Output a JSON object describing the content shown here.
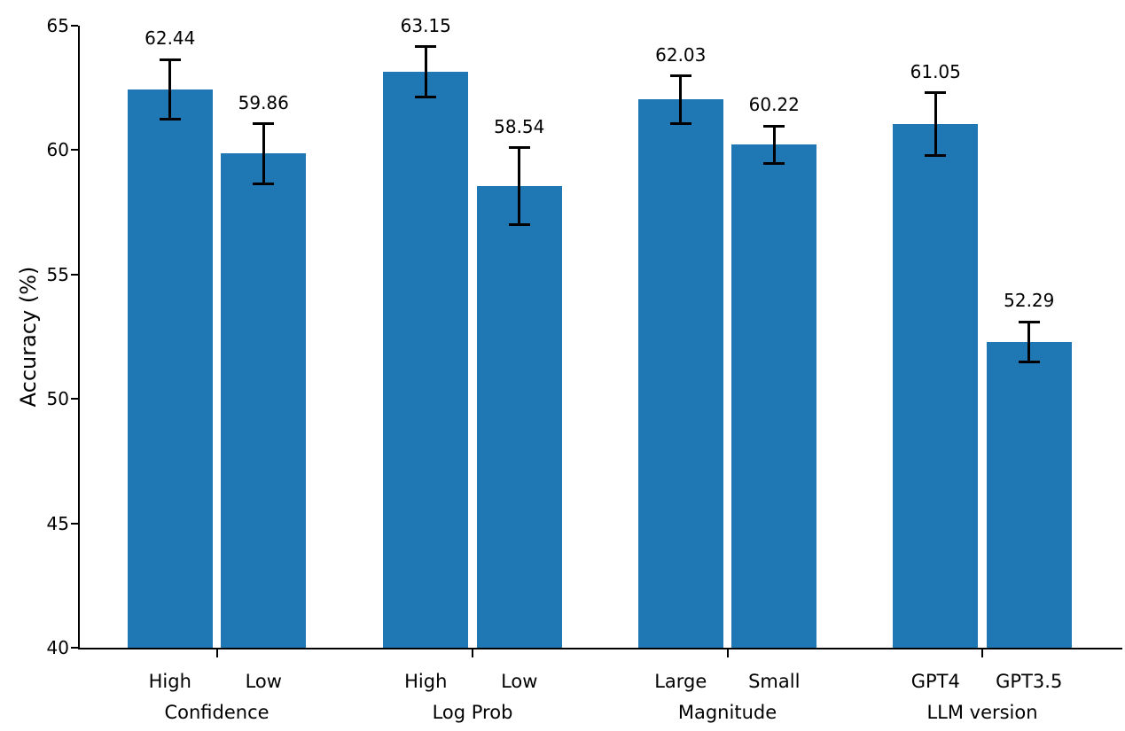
{
  "chart_data": {
    "type": "bar",
    "title": "",
    "xlabel": "",
    "ylabel": "Accuracy (%)",
    "ylim": [
      40,
      65
    ],
    "yticks": [
      40,
      45,
      50,
      55,
      60,
      65
    ],
    "bar_color": "#1f77b4",
    "error_bar_color": "#000000",
    "grid": false,
    "legend": false,
    "value_label_decimals": 2,
    "groups": [
      {
        "label": "Confidence",
        "bars": [
          {
            "label": "High",
            "value": 62.44,
            "error": 1.2
          },
          {
            "label": "Low",
            "value": 59.86,
            "error": 1.2
          }
        ]
      },
      {
        "label": "Log Prob",
        "bars": [
          {
            "label": "High",
            "value": 63.15,
            "error": 1.0
          },
          {
            "label": "Low",
            "value": 58.54,
            "error": 1.55
          }
        ]
      },
      {
        "label": "Magnitude",
        "bars": [
          {
            "label": "Large",
            "value": 62.03,
            "error": 0.95
          },
          {
            "label": "Small",
            "value": 60.22,
            "error": 0.75
          }
        ]
      },
      {
        "label": "LLM version",
        "bars": [
          {
            "label": "GPT4",
            "value": 61.05,
            "error": 1.25
          },
          {
            "label": "GPT3.5",
            "value": 52.29,
            "error": 0.8
          }
        ]
      }
    ]
  }
}
